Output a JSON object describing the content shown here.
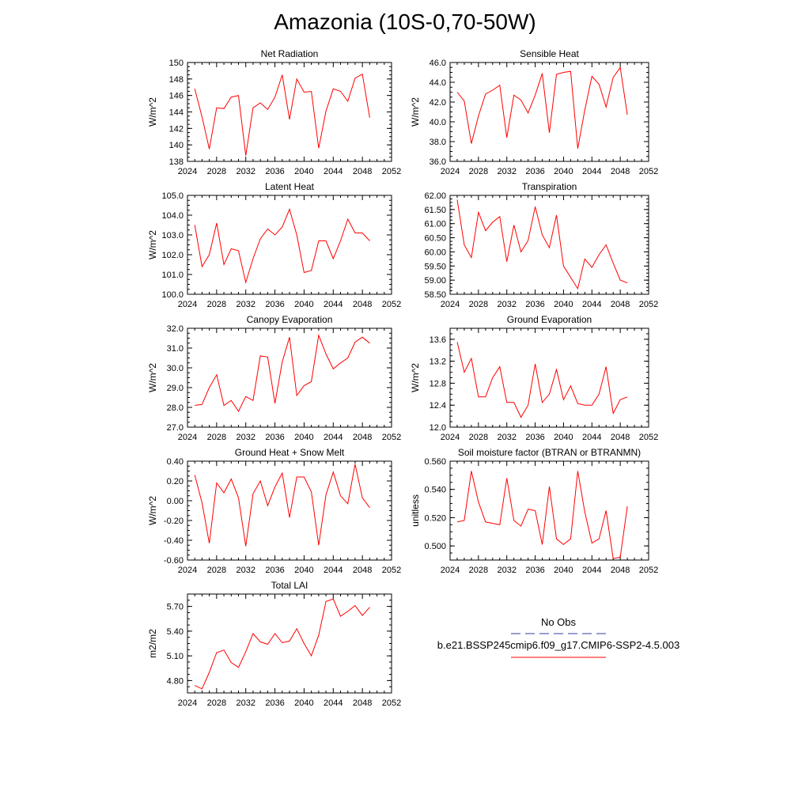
{
  "figure": {
    "title": "Amazonia (10S-0,70-50W)"
  },
  "legend": {
    "entries": [
      {
        "name": "No Obs",
        "color": "#3a3aa0",
        "dash": true
      },
      {
        "name": "b.e21.BSSP245cmip6.f09_g17.CMIP6-SSP2-4.5.003",
        "color": "#ff0000",
        "dash": false
      }
    ]
  },
  "chart_data": [
    {
      "type": "line",
      "title": "Net Radiation",
      "xlabel": "",
      "ylabel": "W/m^2",
      "xlim": [
        2024,
        2052
      ],
      "ylim": [
        138,
        150
      ],
      "xticks": [
        2024,
        2028,
        2032,
        2036,
        2040,
        2044,
        2048,
        2052
      ],
      "yticks": [
        "138",
        "140",
        "142",
        "144",
        "146",
        "148",
        "150"
      ],
      "x": [
        2025,
        2026,
        2027,
        2028,
        2029,
        2030,
        2031,
        2032,
        2033,
        2034,
        2035,
        2036,
        2037,
        2038,
        2039,
        2040,
        2041,
        2042,
        2043,
        2044,
        2045,
        2046,
        2047,
        2048,
        2049
      ],
      "series": [
        {
          "color": "#ff0000",
          "values": [
            146.8,
            143.4,
            139.5,
            144.5,
            144.4,
            145.8,
            146.0,
            138.7,
            144.5,
            145.1,
            144.3,
            145.8,
            148.5,
            143.1,
            148.0,
            146.4,
            146.5,
            139.6,
            144.1,
            146.8,
            146.5,
            145.3,
            148.1,
            148.6,
            143.3
          ]
        }
      ]
    },
    {
      "type": "line",
      "title": "Sensible Heat",
      "xlabel": "",
      "ylabel": "W/m^2",
      "xlim": [
        2024,
        2052
      ],
      "ylim": [
        36,
        46
      ],
      "xticks": [
        2024,
        2028,
        2032,
        2036,
        2040,
        2044,
        2048,
        2052
      ],
      "yticks": [
        "36.0",
        "38.0",
        "40.0",
        "42.0",
        "44.0",
        "46.0"
      ],
      "x": [
        2025,
        2026,
        2027,
        2028,
        2029,
        2030,
        2031,
        2032,
        2033,
        2034,
        2035,
        2036,
        2037,
        2038,
        2039,
        2040,
        2041,
        2042,
        2043,
        2044,
        2045,
        2046,
        2047,
        2048,
        2049
      ],
      "series": [
        {
          "color": "#ff0000",
          "values": [
            43.0,
            42.1,
            37.8,
            40.6,
            42.8,
            43.2,
            43.7,
            38.4,
            42.7,
            42.2,
            40.9,
            42.7,
            44.9,
            38.9,
            44.8,
            45.0,
            45.1,
            37.3,
            41.2,
            44.6,
            43.8,
            41.5,
            44.5,
            45.5,
            40.7
          ]
        }
      ]
    },
    {
      "type": "line",
      "title": "Latent Heat",
      "xlabel": "",
      "ylabel": "W/m^2",
      "xlim": [
        2024,
        2052
      ],
      "ylim": [
        100,
        105
      ],
      "xticks": [
        2024,
        2028,
        2032,
        2036,
        2040,
        2044,
        2048,
        2052
      ],
      "yticks": [
        "100.0",
        "101.0",
        "102.0",
        "103.0",
        "104.0",
        "105.0"
      ],
      "x": [
        2025,
        2026,
        2027,
        2028,
        2029,
        2030,
        2031,
        2032,
        2033,
        2034,
        2035,
        2036,
        2037,
        2038,
        2039,
        2040,
        2041,
        2042,
        2043,
        2044,
        2045,
        2046,
        2047,
        2048,
        2049
      ],
      "series": [
        {
          "color": "#ff0000",
          "values": [
            103.5,
            101.4,
            102.0,
            103.6,
            101.5,
            102.3,
            102.2,
            100.6,
            101.8,
            102.8,
            103.3,
            103.0,
            103.4,
            104.3,
            103.0,
            101.1,
            101.2,
            102.7,
            102.7,
            101.8,
            102.7,
            103.8,
            103.1,
            103.1,
            102.7
          ]
        }
      ]
    },
    {
      "type": "line",
      "title": "Transpiration",
      "xlabel": "",
      "ylabel": "",
      "xlim": [
        2024,
        2052
      ],
      "ylim": [
        58.5,
        62
      ],
      "xticks": [
        2024,
        2028,
        2032,
        2036,
        2040,
        2044,
        2048,
        2052
      ],
      "yticks": [
        "58.50",
        "59.00",
        "59.50",
        "60.00",
        "60.50",
        "61.00",
        "61.50",
        "62.00"
      ],
      "x": [
        2025,
        2026,
        2027,
        2028,
        2029,
        2030,
        2031,
        2032,
        2033,
        2034,
        2035,
        2036,
        2037,
        2038,
        2039,
        2040,
        2041,
        2042,
        2043,
        2044,
        2045,
        2046,
        2047,
        2048,
        2049
      ],
      "series": [
        {
          "color": "#ff0000",
          "values": [
            61.85,
            60.25,
            59.8,
            61.4,
            60.75,
            61.05,
            61.25,
            59.65,
            60.95,
            60.0,
            60.4,
            61.6,
            60.6,
            60.15,
            61.3,
            59.5,
            59.1,
            58.7,
            59.75,
            59.45,
            59.9,
            60.25,
            59.6,
            59.0,
            58.9
          ]
        }
      ]
    },
    {
      "type": "line",
      "title": "Canopy Evaporation",
      "xlabel": "",
      "ylabel": "W/m^2",
      "xlim": [
        2024,
        2052
      ],
      "ylim": [
        27,
        32
      ],
      "xticks": [
        2024,
        2028,
        2032,
        2036,
        2040,
        2044,
        2048,
        2052
      ],
      "yticks": [
        "27.0",
        "28.0",
        "29.0",
        "30.0",
        "31.0",
        "32.0"
      ],
      "x": [
        2025,
        2026,
        2027,
        2028,
        2029,
        2030,
        2031,
        2032,
        2033,
        2034,
        2035,
        2036,
        2037,
        2038,
        2039,
        2040,
        2041,
        2042,
        2043,
        2044,
        2045,
        2046,
        2047,
        2048,
        2049
      ],
      "series": [
        {
          "color": "#ff0000",
          "values": [
            28.1,
            28.15,
            29.0,
            29.65,
            28.1,
            28.35,
            27.8,
            28.55,
            28.35,
            30.6,
            30.55,
            28.2,
            30.3,
            31.55,
            28.6,
            29.1,
            29.3,
            31.65,
            30.7,
            29.95,
            30.25,
            30.5,
            31.3,
            31.55,
            31.25
          ]
        }
      ]
    },
    {
      "type": "line",
      "title": "Ground Evaporation",
      "xlabel": "",
      "ylabel": "W/m^2",
      "xlim": [
        2024,
        2052
      ],
      "ylim": [
        12.0,
        13.8
      ],
      "xticks": [
        2024,
        2028,
        2032,
        2036,
        2040,
        2044,
        2048,
        2052
      ],
      "yticks": [
        "12.0",
        "12.4",
        "12.8",
        "13.2",
        "13.6"
      ],
      "x": [
        2025,
        2026,
        2027,
        2028,
        2029,
        2030,
        2031,
        2032,
        2033,
        2034,
        2035,
        2036,
        2037,
        2038,
        2039,
        2040,
        2041,
        2042,
        2043,
        2044,
        2045,
        2046,
        2047,
        2048,
        2049
      ],
      "series": [
        {
          "color": "#ff0000",
          "values": [
            13.55,
            13.0,
            13.25,
            12.55,
            12.55,
            12.9,
            13.1,
            12.45,
            12.45,
            12.18,
            12.4,
            13.15,
            12.45,
            12.6,
            13.05,
            12.5,
            12.75,
            12.43,
            12.4,
            12.4,
            12.6,
            13.1,
            12.25,
            12.5,
            12.55
          ]
        }
      ]
    },
    {
      "type": "line",
      "title": "Ground Heat + Snow Melt",
      "xlabel": "",
      "ylabel": "W/m^2",
      "xlim": [
        2024,
        2052
      ],
      "ylim": [
        -0.6,
        0.4
      ],
      "xticks": [
        2024,
        2028,
        2032,
        2036,
        2040,
        2044,
        2048,
        2052
      ],
      "yticks": [
        "-0.60",
        "-0.40",
        "-0.20",
        "0.00",
        "0.20",
        "0.40"
      ],
      "x": [
        2025,
        2026,
        2027,
        2028,
        2029,
        2030,
        2031,
        2032,
        2033,
        2034,
        2035,
        2036,
        2037,
        2038,
        2039,
        2040,
        2041,
        2042,
        2043,
        2044,
        2045,
        2046,
        2047,
        2048,
        2049
      ],
      "series": [
        {
          "color": "#ff0000",
          "values": [
            0.26,
            -0.02,
            -0.43,
            0.18,
            0.08,
            0.22,
            0.03,
            -0.46,
            0.07,
            0.2,
            -0.05,
            0.14,
            0.28,
            -0.17,
            0.24,
            0.24,
            0.09,
            -0.45,
            0.06,
            0.29,
            0.05,
            -0.03,
            0.37,
            0.03,
            -0.07
          ]
        }
      ]
    },
    {
      "type": "line",
      "title": "Soil moisture factor (BTRAN or BTRANMN)",
      "xlabel": "",
      "ylabel": "unitless",
      "xlim": [
        2024,
        2052
      ],
      "ylim": [
        0.49,
        0.56
      ],
      "xticks": [
        2024,
        2028,
        2032,
        2036,
        2040,
        2044,
        2048,
        2052
      ],
      "yticks": [
        "0.500",
        "0.520",
        "0.540",
        "0.560"
      ],
      "x": [
        2025,
        2026,
        2027,
        2028,
        2029,
        2030,
        2031,
        2032,
        2033,
        2034,
        2035,
        2036,
        2037,
        2038,
        2039,
        2040,
        2041,
        2042,
        2043,
        2044,
        2045,
        2046,
        2047,
        2048,
        2049
      ],
      "series": [
        {
          "color": "#ff0000",
          "values": [
            0.517,
            0.518,
            0.553,
            0.531,
            0.517,
            0.516,
            0.515,
            0.548,
            0.518,
            0.514,
            0.526,
            0.525,
            0.501,
            0.542,
            0.505,
            0.501,
            0.505,
            0.553,
            0.524,
            0.502,
            0.505,
            0.525,
            0.491,
            0.492,
            0.528
          ]
        }
      ]
    },
    {
      "type": "line",
      "title": "Total LAI",
      "xlabel": "",
      "ylabel": "m2/m2",
      "xlim": [
        2024,
        2052
      ],
      "ylim": [
        4.65,
        5.85
      ],
      "xticks": [
        2024,
        2028,
        2032,
        2036,
        2040,
        2044,
        2048,
        2052
      ],
      "yticks": [
        "4.80",
        "5.10",
        "5.40",
        "5.70"
      ],
      "x": [
        2025,
        2026,
        2027,
        2028,
        2029,
        2030,
        2031,
        2032,
        2033,
        2034,
        2035,
        2036,
        2037,
        2038,
        2039,
        2040,
        2041,
        2042,
        2043,
        2044,
        2045,
        2046,
        2047,
        2048,
        2049
      ],
      "series": [
        {
          "color": "#ff0000",
          "values": [
            4.74,
            4.7,
            4.9,
            5.14,
            5.17,
            5.02,
            4.96,
            5.15,
            5.37,
            5.27,
            5.24,
            5.37,
            5.26,
            5.28,
            5.43,
            5.25,
            5.1,
            5.35,
            5.76,
            5.79,
            5.58,
            5.64,
            5.71,
            5.59,
            5.69
          ]
        }
      ]
    }
  ]
}
